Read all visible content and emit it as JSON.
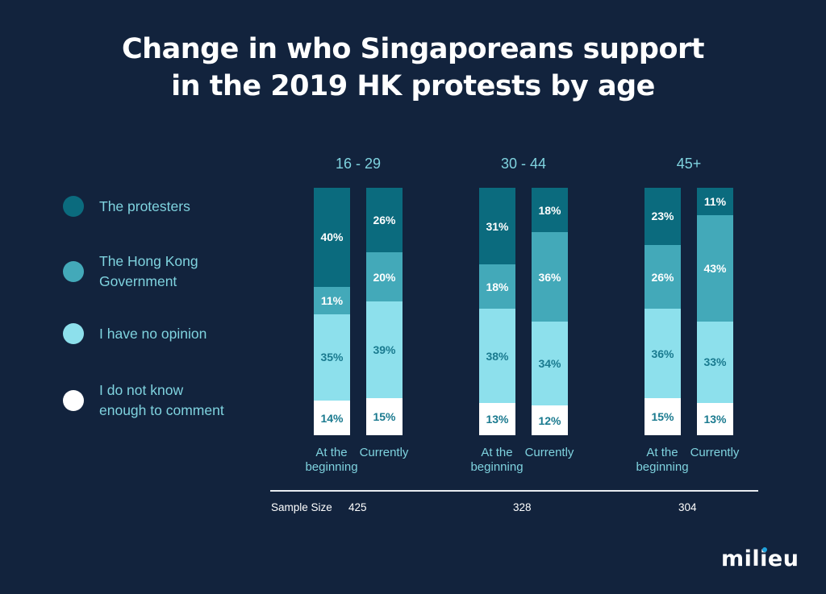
{
  "title_lines": [
    "Change in who Singaporeans support",
    "in the 2019 HK protests by age"
  ],
  "colors": {
    "background": "#12233d",
    "protesters": "#0b6b7e",
    "government": "#43a9b9",
    "no_opinion": "#8de0ec",
    "dont_know": "#ffffff",
    "label_light": "#ffffff",
    "label_dark": "#1a7a8f",
    "legend_text": "#7fd3df",
    "logo_dot": "#1ea3de"
  },
  "legend": [
    {
      "lines": [
        "The protesters"
      ],
      "color": "#0b6b7e"
    },
    {
      "lines": [
        "The Hong Kong",
        "Government"
      ],
      "color": "#43a9b9"
    },
    {
      "lines": [
        "I have no opinion"
      ],
      "color": "#8de0ec"
    },
    {
      "lines": [
        "I do not know",
        "enough to comment"
      ],
      "color": "#ffffff"
    }
  ],
  "chart_data": {
    "type": "bar",
    "stacked": true,
    "orientation": "vertical",
    "title": "Change in who Singaporeans support in the 2019 HK protests by age",
    "unit": "%",
    "groups": [
      "16 - 29",
      "30 - 44",
      "45+"
    ],
    "bar_categories": [
      "At the beginning",
      "Currently"
    ],
    "series": [
      {
        "name": "The protesters",
        "values": [
          [
            40,
            26
          ],
          [
            31,
            18
          ],
          [
            23,
            11
          ]
        ]
      },
      {
        "name": "The Hong Kong Government",
        "values": [
          [
            11,
            20
          ],
          [
            18,
            36
          ],
          [
            26,
            43
          ]
        ]
      },
      {
        "name": "I have no opinion",
        "values": [
          [
            35,
            39
          ],
          [
            38,
            34
          ],
          [
            36,
            33
          ]
        ]
      },
      {
        "name": "I do not know enough to comment",
        "values": [
          [
            14,
            15
          ],
          [
            13,
            12
          ],
          [
            15,
            13
          ]
        ]
      }
    ],
    "stack_order": "top-to-bottom",
    "legend_position": "left",
    "sample_size_label": "Sample Size",
    "sample_sizes": [
      425,
      328,
      304
    ],
    "ylim": [
      0,
      100
    ],
    "grid": false
  },
  "bar_labels": [
    [
      "At the",
      "beginning"
    ],
    [
      "Currently"
    ]
  ],
  "logo": "milieu"
}
